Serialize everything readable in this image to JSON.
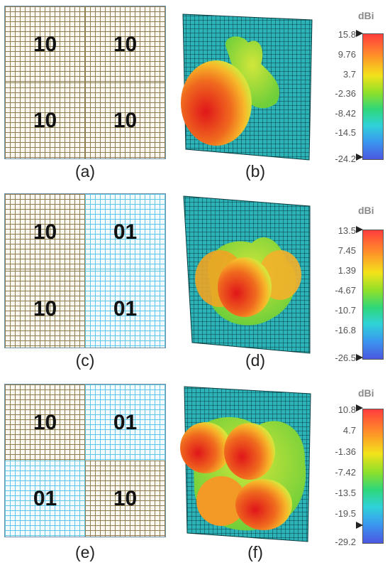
{
  "panels": {
    "a": {
      "caption": "(a)",
      "quads": [
        {
          "label": "10",
          "color": "brown"
        },
        {
          "label": "10",
          "color": "brown"
        },
        {
          "label": "10",
          "color": "brown"
        },
        {
          "label": "10",
          "color": "brown"
        }
      ]
    },
    "b": {
      "caption": "(b)",
      "unit": "dBi",
      "ticks": [
        "15.8",
        "9.76",
        "3.7",
        "-2.36",
        "-8.42",
        "-14.5",
        "-24.2"
      ]
    },
    "c": {
      "caption": "(c)",
      "quads": [
        {
          "label": "10",
          "color": "brown"
        },
        {
          "label": "01",
          "color": "blue"
        },
        {
          "label": "10",
          "color": "brown"
        },
        {
          "label": "01",
          "color": "blue"
        }
      ]
    },
    "d": {
      "caption": "(d)",
      "unit": "dBi",
      "ticks": [
        "13.5",
        "7.45",
        "1.39",
        "-4.67",
        "-10.7",
        "-16.8",
        "-26.5"
      ]
    },
    "e": {
      "caption": "(e)",
      "quads": [
        {
          "label": "10",
          "color": "brown"
        },
        {
          "label": "01",
          "color": "blue"
        },
        {
          "label": "01",
          "color": "blue"
        },
        {
          "label": "10",
          "color": "brown"
        }
      ]
    },
    "f": {
      "caption": "(f)",
      "unit": "dBi",
      "ticks": [
        "10.8",
        "4.7",
        "-1.36",
        "-7.42",
        "-13.5",
        "-19.5",
        "-29.2"
      ]
    }
  },
  "colors": {
    "grid_brown": "#8f7e50",
    "grid_blue": "#5fc6e6",
    "panel_teal": "#2bb3b8",
    "pattern_red": "#e8261b",
    "pattern_green": "#7fdc2a"
  }
}
